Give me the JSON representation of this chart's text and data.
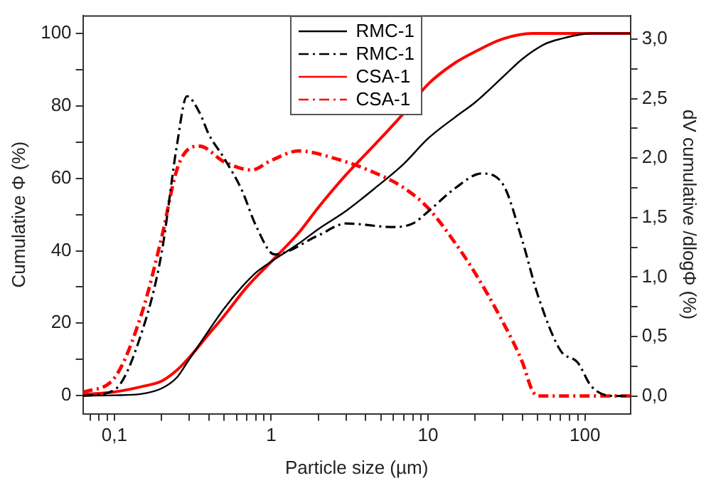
{
  "chart_data": {
    "type": "line",
    "xlabel": "Particle size (µm)",
    "ylabel": "Cumulative Φ (%)",
    "y2label": "dV cumulative /dlogΦ (%)",
    "log": "x",
    "grid": false,
    "legend": "top",
    "marker": "none",
    "xlim": [
      0.063,
      195
    ],
    "xticks": [
      {
        "value": 0.07,
        "label": null
      },
      {
        "value": 0.08,
        "label": null
      },
      {
        "value": 0.09,
        "label": null
      },
      {
        "value": 0.1,
        "label": "0,1"
      },
      {
        "value": 0.2,
        "label": null
      },
      {
        "value": 0.3,
        "label": null
      },
      {
        "value": 0.4,
        "label": null
      },
      {
        "value": 0.5,
        "label": null
      },
      {
        "value": 0.6,
        "label": null
      },
      {
        "value": 0.7,
        "label": null
      },
      {
        "value": 0.8,
        "label": null
      },
      {
        "value": 0.9,
        "label": null
      },
      1,
      {
        "value": 2,
        "label": null
      },
      {
        "value": 3,
        "label": null
      },
      {
        "value": 4,
        "label": null
      },
      {
        "value": 5,
        "label": null
      },
      {
        "value": 6,
        "label": null
      },
      {
        "value": 7,
        "label": null
      },
      {
        "value": 8,
        "label": null
      },
      {
        "value": 9,
        "label": null
      },
      10,
      {
        "value": 20,
        "label": null
      },
      {
        "value": 30,
        "label": null
      },
      {
        "value": 40,
        "label": null
      },
      {
        "value": 50,
        "label": null
      },
      {
        "value": 60,
        "label": null
      },
      {
        "value": 70,
        "label": null
      },
      {
        "value": 80,
        "label": null
      },
      {
        "value": 90,
        "label": null
      },
      100
    ],
    "ylim": [
      -5,
      105
    ],
    "yticks": [
      0,
      {
        "value": 10,
        "label": null
      },
      20,
      {
        "value": 30,
        "label": null
      },
      40,
      {
        "value": 50,
        "label": null
      },
      60,
      {
        "value": 70,
        "label": null
      },
      80,
      {
        "value": 90,
        "label": null
      },
      100
    ],
    "y2lim": [
      -0.15,
      3.2
    ],
    "y2ticks": [
      {
        "value": 0,
        "label": "0,0"
      },
      {
        "value": 0.25,
        "label": null
      },
      {
        "value": 0.5,
        "label": "0,5"
      },
      {
        "value": 0.75,
        "label": null
      },
      {
        "value": 1,
        "label": "1,0"
      },
      {
        "value": 1.25,
        "label": null
      },
      {
        "value": 1.5,
        "label": "1,5"
      },
      {
        "value": 1.75,
        "label": null
      },
      {
        "value": 2,
        "label": "2,0"
      },
      {
        "value": 2.25,
        "label": null
      },
      {
        "value": 2.5,
        "label": "2,5"
      },
      {
        "value": 2.75,
        "label": null
      },
      {
        "value": 3,
        "label": "3,0"
      }
    ],
    "series": [
      {
        "name": "RMC-1",
        "color": "#000000",
        "line_style": "solid",
        "x": [
          0.063,
          0.1,
          0.15,
          0.2,
          0.25,
          0.3,
          0.4,
          0.5,
          0.65,
          0.8,
          1,
          1.5,
          2,
          3,
          4.5,
          7,
          10,
          15,
          20,
          30,
          40,
          55,
          70,
          110,
          195
        ],
        "values": [
          0,
          0.1,
          0.5,
          2,
          5,
          10,
          18,
          24,
          30,
          34,
          37,
          42,
          46,
          51,
          57,
          64,
          71,
          77,
          81,
          88,
          93,
          97,
          98.5,
          100,
          100
        ]
      },
      {
        "name": "RMC-1",
        "color": "#000000",
        "line_style": "dashed",
        "axis": "y2",
        "x": [
          0.063,
          0.1,
          0.15,
          0.2,
          0.25,
          0.29,
          0.35,
          0.4,
          0.5,
          0.65,
          0.8,
          1.05,
          2,
          3,
          6,
          8,
          10,
          15,
          22,
          30,
          40,
          50,
          70,
          90,
          110,
          150,
          195
        ],
        "values": [
          0,
          0.05,
          0.54,
          1.2,
          2.1,
          2.52,
          2.38,
          2.2,
          2,
          1.73,
          1.43,
          1.19,
          1.35,
          1.45,
          1.42,
          1.45,
          1.55,
          1.75,
          1.87,
          1.78,
          1.3,
          0.85,
          0.38,
          0.28,
          0.08,
          0,
          0
        ]
      },
      {
        "name": "CSA-1",
        "color": "#ff0000",
        "line_style": "solid",
        "x": [
          0.063,
          0.1,
          0.15,
          0.2,
          0.25,
          0.3,
          0.4,
          0.5,
          0.7,
          1,
          1.5,
          2,
          3,
          4.5,
          7,
          10,
          15,
          20,
          30,
          46,
          195
        ],
        "values": [
          0.3,
          1,
          2.5,
          4,
          7,
          10.5,
          17,
          22,
          30,
          37,
          45,
          52,
          61,
          69,
          78,
          86,
          92,
          95,
          98.5,
          100,
          100
        ]
      },
      {
        "name": "CSA-1",
        "color": "#ff0000",
        "line_style": "dashed",
        "axis": "y2",
        "x": [
          0.063,
          0.1,
          0.15,
          0.2,
          0.25,
          0.3,
          0.35,
          0.5,
          0.75,
          1,
          1.5,
          2.5,
          4.5,
          7,
          10,
          15,
          20,
          30,
          40,
          46,
          50,
          195
        ],
        "values": [
          0.03,
          0.15,
          0.7,
          1.33,
          1.9,
          2.08,
          2.1,
          1.97,
          1.9,
          1.98,
          2.06,
          2,
          1.88,
          1.75,
          1.58,
          1.28,
          1.03,
          0.62,
          0.28,
          0.05,
          0,
          0
        ]
      }
    ]
  }
}
